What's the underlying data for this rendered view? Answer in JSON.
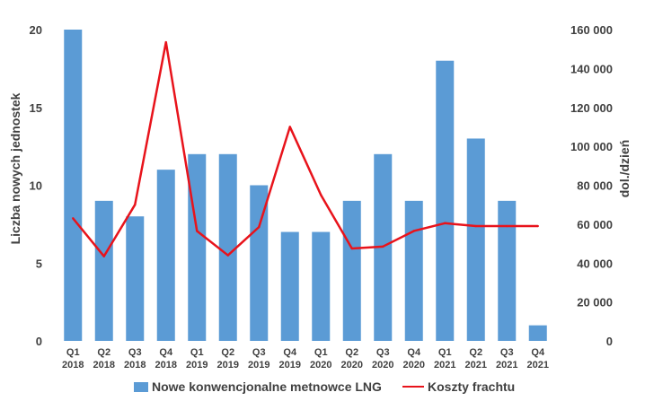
{
  "chart_data": {
    "type": "bar",
    "title": "",
    "categories": [
      [
        "Q1",
        "2018"
      ],
      [
        "Q2",
        "2018"
      ],
      [
        "Q3",
        "2018"
      ],
      [
        "Q4",
        "2018"
      ],
      [
        "Q1",
        "2019"
      ],
      [
        "Q2",
        "2019"
      ],
      [
        "Q3",
        "2019"
      ],
      [
        "Q4",
        "2019"
      ],
      [
        "Q1",
        "2020"
      ],
      [
        "Q2",
        "2020"
      ],
      [
        "Q3",
        "2020"
      ],
      [
        "Q4",
        "2020"
      ],
      [
        "Q1",
        "2021"
      ],
      [
        "Q2",
        "2021"
      ],
      [
        "Q3",
        "2021"
      ],
      [
        "Q4",
        "2021"
      ]
    ],
    "series": [
      {
        "name": "Nowe konwencjonalne metnowce LNG",
        "type": "bar",
        "axis": "left",
        "color": "#5b9bd5",
        "values": [
          20,
          9,
          8,
          11,
          12,
          12,
          10,
          7,
          7,
          9,
          12,
          9,
          18,
          13,
          9,
          1
        ]
      },
      {
        "name": "Koszty frachtu",
        "type": "line",
        "axis": "right",
        "color": "#e8131b",
        "values": [
          63000,
          43500,
          70000,
          153500,
          56500,
          44000,
          58500,
          110000,
          75000,
          47500,
          48500,
          56500,
          60500,
          59000,
          59000,
          59000
        ]
      }
    ],
    "y_left": {
      "label": "Liczba nowych jednostek",
      "range": [
        0,
        20
      ],
      "ticks": [
        0,
        5,
        10,
        15,
        20
      ],
      "tick_labels": [
        "0",
        "5",
        "10",
        "15",
        "20"
      ]
    },
    "y_right": {
      "label": "dol./dzień",
      "range": [
        0,
        160000
      ],
      "ticks": [
        0,
        20000,
        40000,
        60000,
        80000,
        100000,
        120000,
        140000,
        160000
      ],
      "tick_labels": [
        "0",
        "20 000",
        "40 000",
        "60 000",
        "80 000",
        "100 000",
        "120 000",
        "140 000",
        "160 000"
      ]
    },
    "grid": false,
    "legend": {
      "position": "bottom"
    }
  }
}
